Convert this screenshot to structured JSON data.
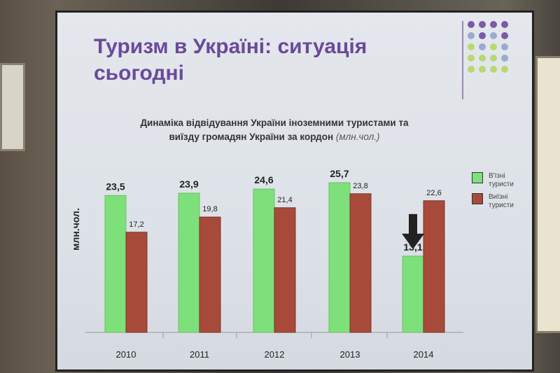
{
  "slide": {
    "title_line1": "Туризм в Україні: ситуація",
    "title_line2": "сьогодні"
  },
  "colors": {
    "inbound": "#7ee07a",
    "outbound": "#a84a3a",
    "title": "#6a4a9a"
  },
  "chart_data": {
    "type": "bar",
    "title_line1": "Динаміка відвідування України іноземними туристами та",
    "title_line2": "виїзду громадян України за кордон",
    "title_unit": "(млн.чол.)",
    "ylabel": "млн.чол.",
    "categories": [
      "2010",
      "2011",
      "2012",
      "2013",
      "2014"
    ],
    "series": [
      {
        "name": "В'їзні туристи",
        "values": [
          23.5,
          23.9,
          24.6,
          25.7,
          13.1
        ],
        "labels": [
          "23,5",
          "23,9",
          "24,6",
          "25,7",
          "13,1"
        ]
      },
      {
        "name": "Виїзні туристи",
        "values": [
          17.2,
          19.8,
          21.4,
          23.8,
          22.6
        ],
        "labels": [
          "17,2",
          "19,8",
          "21,4",
          "23,8",
          "22,6"
        ]
      }
    ],
    "ylim": [
      0,
      26
    ],
    "grid": false,
    "legend": "right",
    "annotations": [
      "down-arrow over 2014 inbound"
    ]
  }
}
